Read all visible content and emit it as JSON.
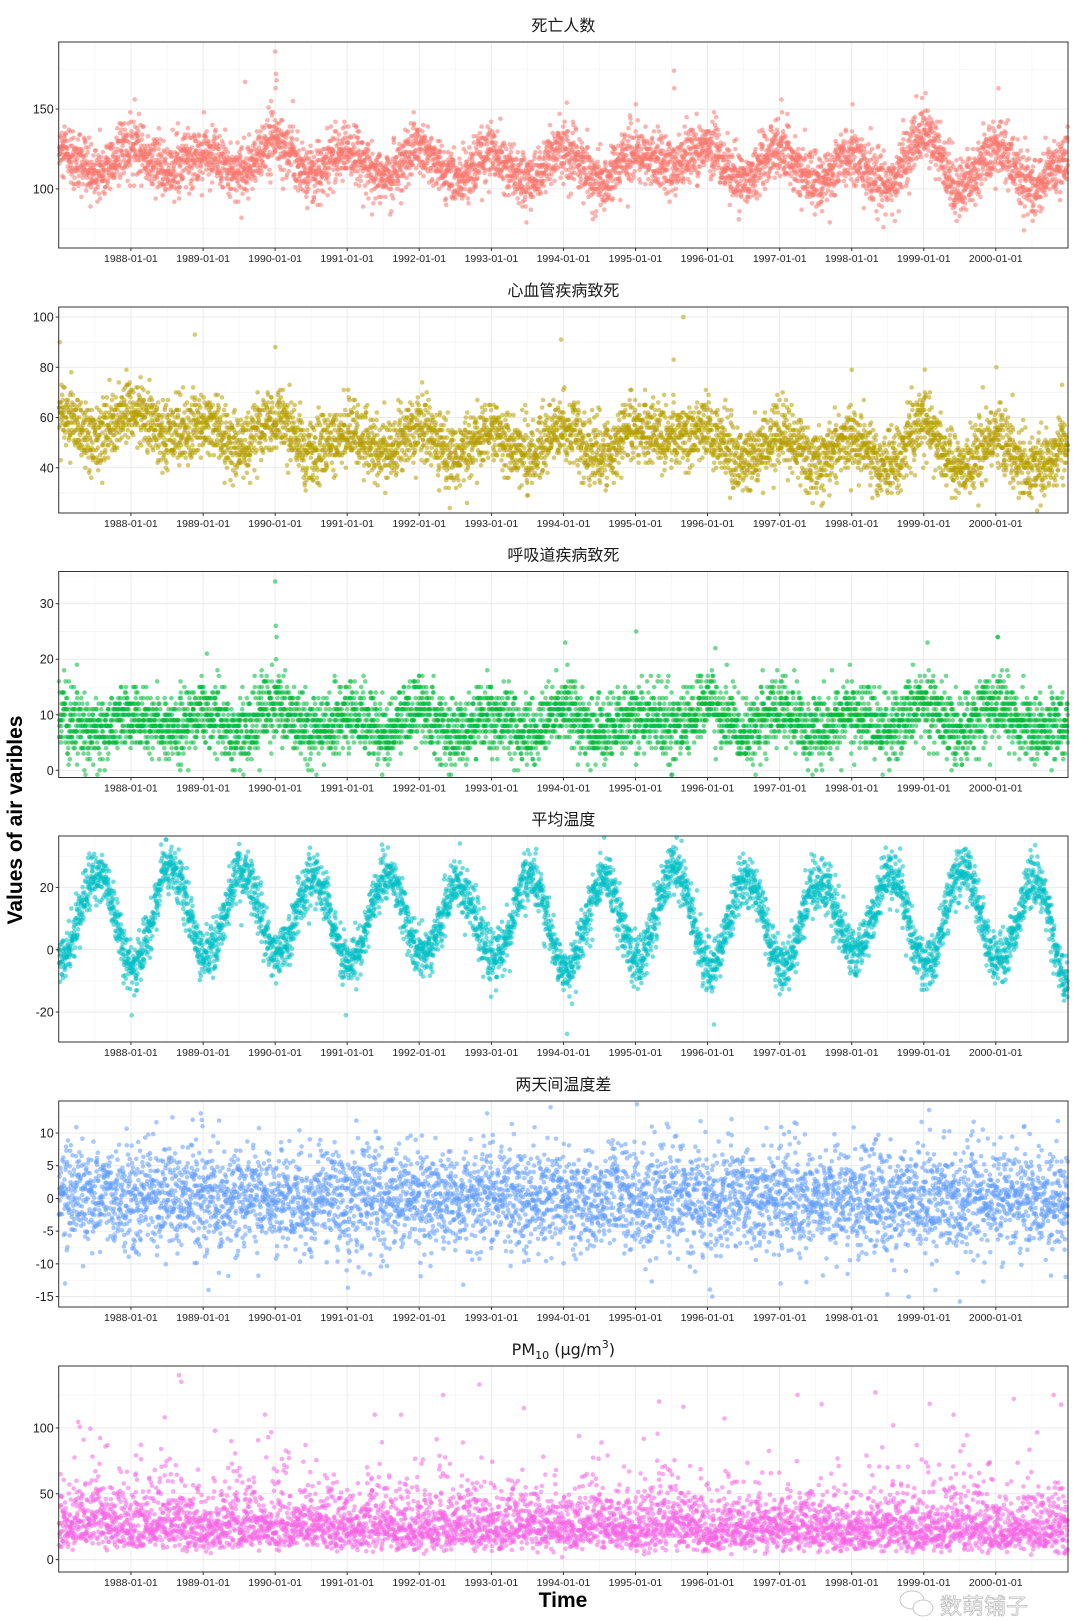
{
  "chart_data": {
    "type": "scatter",
    "facets": "6 stacked panels, shared x axis",
    "xlabel": "Time",
    "ylabel": "Values of air varibles",
    "xlim": [
      "1986-12-31",
      "2001-01-01"
    ],
    "x_ticks": [
      "1988-01-01",
      "1989-01-01",
      "1990-01-01",
      "1991-01-01",
      "1992-01-01",
      "1993-01-01",
      "1994-01-01",
      "1995-01-01",
      "1996-01-01",
      "1997-01-01",
      "1998-01-01",
      "1999-01-01",
      "2000-01-01"
    ],
    "grid": true,
    "panels": [
      {
        "title": "死亡人数",
        "color": "#F8766D",
        "ylim": [
          63,
          192
        ],
        "y_ticks": [
          100,
          150
        ],
        "integer": true,
        "seasonal_means": [
          [
            "1987-01-01",
            122
          ],
          [
            "1987-07-01",
            110
          ],
          [
            "1988-01-01",
            125
          ],
          [
            "1988-07-01",
            112
          ],
          [
            "1989-01-01",
            122
          ],
          [
            "1989-07-01",
            110
          ],
          [
            "1990-01-01",
            130
          ],
          [
            "1990-07-01",
            108
          ],
          [
            "1991-01-01",
            125
          ],
          [
            "1991-07-01",
            108
          ],
          [
            "1992-01-01",
            125
          ],
          [
            "1992-07-01",
            105
          ],
          [
            "1993-01-01",
            122
          ],
          [
            "1993-07-01",
            106
          ],
          [
            "1994-01-01",
            125
          ],
          [
            "1994-07-01",
            106
          ],
          [
            "1995-01-01",
            122
          ],
          [
            "1995-07-01",
            115
          ],
          [
            "1996-01-01",
            125
          ],
          [
            "1996-07-01",
            105
          ],
          [
            "1997-01-01",
            125
          ],
          [
            "1997-07-01",
            103
          ],
          [
            "1998-01-01",
            120
          ],
          [
            "1998-07-01",
            102
          ],
          [
            "1999-01-01",
            135
          ],
          [
            "1999-07-01",
            100
          ],
          [
            "2000-01-01",
            125
          ],
          [
            "2000-07-01",
            102
          ],
          [
            "2001-01-01",
            118
          ]
        ],
        "outliers": [
          [
            "1990-01-01",
            186
          ],
          [
            "1990-01-05",
            172
          ],
          [
            "1990-01-08",
            168
          ],
          [
            "1990-01-03",
            163
          ],
          [
            "1989-08-01",
            167
          ],
          [
            "1995-07-15",
            174
          ],
          [
            "1995-07-16",
            163
          ],
          [
            "1990-04-01",
            155
          ],
          [
            "1988-01-20",
            156
          ],
          [
            "1999-01-10",
            160
          ],
          [
            "2000-01-15",
            163
          ],
          [
            "1998-01-05",
            153
          ],
          [
            "1994-01-18",
            154
          ],
          [
            "1997-01-10",
            156
          ]
        ]
      },
      {
        "title": "心血管疾病致死",
        "color": "#B79F00",
        "ylim": [
          22,
          104
        ],
        "y_ticks": [
          40,
          60,
          80,
          100
        ],
        "integer": true,
        "seasonal_means": [
          [
            "1987-01-01",
            62
          ],
          [
            "1987-07-01",
            52
          ],
          [
            "1988-01-01",
            63
          ],
          [
            "1988-07-01",
            53
          ],
          [
            "1989-01-01",
            58
          ],
          [
            "1989-07-01",
            48
          ],
          [
            "1990-01-01",
            60
          ],
          [
            "1990-07-01",
            46
          ],
          [
            "1991-01-01",
            55
          ],
          [
            "1991-07-01",
            46
          ],
          [
            "1992-01-01",
            56
          ],
          [
            "1992-07-01",
            44
          ],
          [
            "1993-01-01",
            55
          ],
          [
            "1993-07-01",
            44
          ],
          [
            "1994-01-01",
            56
          ],
          [
            "1994-07-01",
            44
          ],
          [
            "1995-01-01",
            55
          ],
          [
            "1995-07-01",
            52
          ],
          [
            "1996-01-01",
            55
          ],
          [
            "1996-07-01",
            43
          ],
          [
            "1997-01-01",
            53
          ],
          [
            "1997-07-01",
            42
          ],
          [
            "1998-01-01",
            52
          ],
          [
            "1998-07-01",
            41
          ],
          [
            "1999-01-01",
            58
          ],
          [
            "1999-07-01",
            40
          ],
          [
            "2000-01-01",
            52
          ],
          [
            "2000-07-01",
            40
          ],
          [
            "2001-01-01",
            48
          ]
        ],
        "outliers": [
          [
            "1987-01-05",
            90
          ],
          [
            "1988-11-20",
            93
          ],
          [
            "1990-01-02",
            88
          ],
          [
            "1993-12-20",
            91
          ],
          [
            "1995-09-01",
            100
          ],
          [
            "1995-07-14",
            83
          ],
          [
            "1999-01-06",
            79
          ],
          [
            "2000-01-04",
            80
          ],
          [
            "1998-01-01",
            79
          ]
        ]
      },
      {
        "title": "呼吸道疾病致死",
        "color": "#00BA38",
        "ylim": [
          -1.3,
          35.8
        ],
        "y_ticks": [
          0,
          10,
          20,
          30
        ],
        "integer": true,
        "seasonal_means": [
          [
            "1987-01-01",
            10
          ],
          [
            "1987-07-01",
            7
          ],
          [
            "1988-01-01",
            10
          ],
          [
            "1988-07-01",
            7
          ],
          [
            "1989-01-01",
            10
          ],
          [
            "1989-07-01",
            7
          ],
          [
            "1990-01-01",
            12
          ],
          [
            "1990-07-01",
            7
          ],
          [
            "1991-01-01",
            10
          ],
          [
            "1991-07-01",
            7
          ],
          [
            "1992-01-01",
            11
          ],
          [
            "1992-07-01",
            7
          ],
          [
            "1993-01-01",
            10
          ],
          [
            "1993-07-01",
            7
          ],
          [
            "1994-01-01",
            11
          ],
          [
            "1994-07-01",
            7
          ],
          [
            "1995-01-01",
            10
          ],
          [
            "1995-07-01",
            8
          ],
          [
            "1996-01-01",
            12
          ],
          [
            "1996-07-01",
            7
          ],
          [
            "1997-01-01",
            11
          ],
          [
            "1997-07-01",
            7
          ],
          [
            "1998-01-01",
            11
          ],
          [
            "1998-07-01",
            7
          ],
          [
            "1999-01-01",
            12
          ],
          [
            "1999-07-01",
            7
          ],
          [
            "2000-01-01",
            12
          ],
          [
            "2000-07-01",
            7
          ],
          [
            "2001-01-01",
            9
          ]
        ],
        "outliers": [
          [
            "1990-01-01",
            34
          ],
          [
            "1990-01-04",
            26
          ],
          [
            "1990-01-08",
            24
          ],
          [
            "1994-01-10",
            23
          ],
          [
            "1995-01-05",
            25
          ],
          [
            "2000-01-10",
            24
          ],
          [
            "2000-01-12",
            24
          ],
          [
            "1999-01-20",
            23
          ],
          [
            "1989-01-20",
            21
          ],
          [
            "1996-02-10",
            22
          ]
        ]
      },
      {
        "title": "平均温度",
        "color": "#00BFC4",
        "ylim": [
          -29.6,
          36.5
        ],
        "y_ticks": [
          -20,
          0,
          20
        ],
        "integer": false,
        "seasonal_means": [
          [
            "1987-01-15",
            -2
          ],
          [
            "1987-07-20",
            25
          ],
          [
            "1988-01-15",
            -6
          ],
          [
            "1988-07-20",
            27
          ],
          [
            "1989-01-15",
            -2
          ],
          [
            "1989-07-20",
            24
          ],
          [
            "1990-01-15",
            -1
          ],
          [
            "1990-07-20",
            23
          ],
          [
            "1991-01-15",
            -4
          ],
          [
            "1991-07-20",
            24
          ],
          [
            "1992-01-15",
            -2
          ],
          [
            "1992-07-20",
            21
          ],
          [
            "1993-01-15",
            -3
          ],
          [
            "1993-07-20",
            24
          ],
          [
            "1994-01-15",
            -8
          ],
          [
            "1994-07-20",
            23
          ],
          [
            "1995-01-15",
            -3
          ],
          [
            "1995-07-20",
            26
          ],
          [
            "1996-01-15",
            -5
          ],
          [
            "1996-07-20",
            23
          ],
          [
            "1997-01-15",
            -5
          ],
          [
            "1997-07-20",
            22
          ],
          [
            "1998-01-15",
            -1
          ],
          [
            "1998-07-20",
            24
          ],
          [
            "1999-01-15",
            -5
          ],
          [
            "1999-07-20",
            26
          ],
          [
            "2000-01-15",
            -4
          ],
          [
            "2000-07-20",
            22
          ],
          [
            "2000-12-31",
            -10
          ]
        ],
        "outliers": [
          [
            "1994-01-19",
            -27
          ],
          [
            "1996-02-03",
            -24
          ],
          [
            "1988-01-05",
            -21
          ],
          [
            "1990-12-25",
            -21
          ],
          [
            "1995-07-13",
            33
          ]
        ]
      },
      {
        "title": "两天间温度差",
        "color": "#619CFF",
        "ylim": [
          -16.6,
          14.9
        ],
        "y_ticks": [
          -15,
          -10,
          -5,
          0,
          5,
          10
        ],
        "integer": false,
        "seasonal_means": [
          [
            "1987-01-01",
            0
          ],
          [
            "2001-01-01",
            0
          ]
        ],
        "outliers": [
          [
            "1987-02-01",
            -13
          ],
          [
            "1988-12-20",
            13
          ],
          [
            "1988-12-25",
            12
          ],
          [
            "1992-12-10",
            13
          ],
          [
            "1996-01-25",
            -15
          ],
          [
            "1997-01-05",
            -13
          ],
          [
            "1999-03-01",
            -14
          ],
          [
            "1989-01-28",
            -14
          ],
          [
            "2000-12-20",
            -12
          ]
        ]
      },
      {
        "title": "PM10 (μg/m3)",
        "title_parts": {
          "base": "PM",
          "sub": "10",
          "mid": " (μg/m",
          "sup": "3",
          "end": ")"
        },
        "color": "#F564E3",
        "ylim": [
          -9.4,
          147
        ],
        "y_ticks": [
          0,
          50,
          100
        ],
        "integer": false,
        "seasonal_means": [
          [
            "1987-01-01",
            30
          ],
          [
            "1987-07-01",
            35
          ],
          [
            "1988-01-01",
            30
          ],
          [
            "1988-07-01",
            36
          ],
          [
            "1989-01-01",
            28
          ],
          [
            "1989-07-01",
            33
          ],
          [
            "1990-01-01",
            30
          ],
          [
            "1990-07-01",
            33
          ],
          [
            "1991-01-01",
            28
          ],
          [
            "1991-07-01",
            32
          ],
          [
            "1992-01-01",
            28
          ],
          [
            "1992-07-01",
            32
          ],
          [
            "1993-01-01",
            28
          ],
          [
            "1993-07-01",
            32
          ],
          [
            "1994-01-01",
            28
          ],
          [
            "1994-07-01",
            33
          ],
          [
            "1995-01-01",
            28
          ],
          [
            "1995-07-01",
            32
          ],
          [
            "1996-01-01",
            27
          ],
          [
            "1996-07-01",
            30
          ],
          [
            "1997-01-01",
            27
          ],
          [
            "1997-07-01",
            30
          ],
          [
            "1998-01-01",
            27
          ],
          [
            "1998-07-01",
            30
          ],
          [
            "1999-01-01",
            27
          ],
          [
            "1999-07-01",
            31
          ],
          [
            "2000-01-01",
            27
          ],
          [
            "2000-07-01",
            30
          ],
          [
            "2001-01-01",
            27
          ]
        ],
        "outliers": [
          [
            "1988-09-01",
            140
          ],
          [
            "1988-09-12",
            135
          ],
          [
            "1988-06-20",
            108
          ],
          [
            "1989-11-10",
            110
          ],
          [
            "1991-10-01",
            110
          ],
          [
            "1992-05-01",
            125
          ],
          [
            "1992-11-01",
            133
          ],
          [
            "1993-06-15",
            115
          ],
          [
            "1995-05-01",
            120
          ],
          [
            "1995-09-01",
            116
          ],
          [
            "1997-04-01",
            125
          ],
          [
            "1997-08-01",
            118
          ],
          [
            "1998-05-01",
            127
          ],
          [
            "1999-06-01",
            110
          ],
          [
            "2000-04-01",
            122
          ],
          [
            "2000-10-20",
            125
          ]
        ]
      }
    ]
  },
  "watermark": "数萌铺子"
}
